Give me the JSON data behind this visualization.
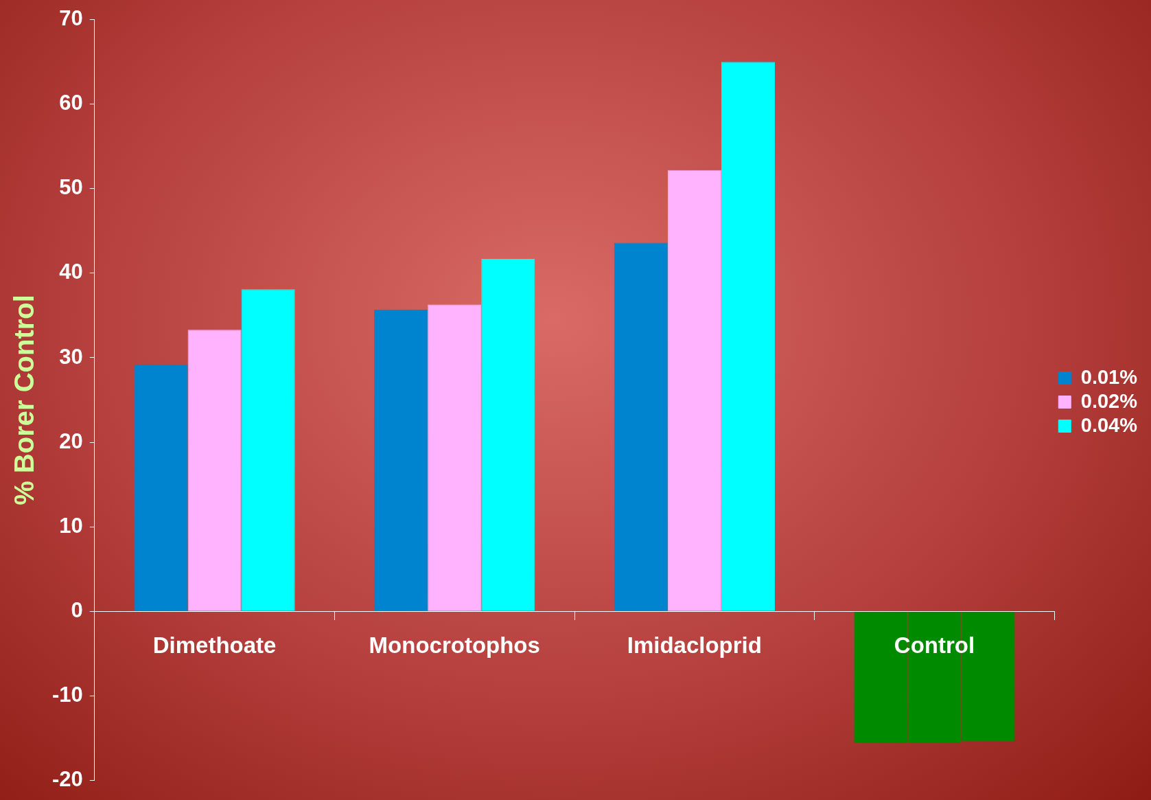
{
  "chart_data": {
    "type": "bar",
    "ylabel": "% Borer Control",
    "categories": [
      "Dimethoate",
      "Monocrotophos",
      "Imidacloprid",
      "Control"
    ],
    "series": [
      {
        "name": "0.01%",
        "color": "#0084d0",
        "colors": [
          "#0084d0",
          "#0084d0",
          "#0084d0",
          "#008a00"
        ],
        "values": [
          29.2,
          35.7,
          43.6,
          -15.6
        ]
      },
      {
        "name": "0.02%",
        "color": "#ffb3ff",
        "colors": [
          "#ffb3ff",
          "#ffb3ff",
          "#ffb3ff",
          "#008a00"
        ],
        "values": [
          33.3,
          36.3,
          52.2,
          -15.6
        ]
      },
      {
        "name": "0.04%",
        "color": "#00ffff",
        "colors": [
          "#00ffff",
          "#00ffff",
          "#00ffff",
          "#008a00"
        ],
        "values": [
          38.1,
          41.7,
          65.0,
          -15.4
        ]
      }
    ],
    "ylim": [
      -20,
      70
    ],
    "yticks": [
      -20,
      -10,
      0,
      10,
      20,
      30,
      40,
      50,
      60,
      70
    ],
    "grid": false,
    "legend": "right"
  }
}
